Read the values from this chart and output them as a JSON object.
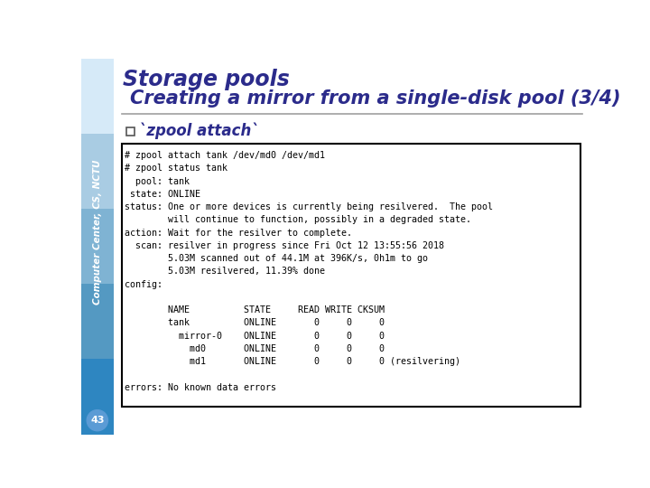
{
  "title_line1": "Storage pools",
  "title_line2": "  Creating a mirror from a single-disk pool (3/4)",
  "title_color": "#2B2B8B",
  "subtitle": "`zpool attach`",
  "subtitle_color": "#2B2B8B",
  "sidebar_text": "Computer Center, CS, NCTU",
  "page_number": "43",
  "main_bg": "#FFFFFF",
  "code_bg": "#FFFFFF",
  "code_border": "#000000",
  "code_lines": [
    "# zpool attach tank /dev/md0 /dev/md1",
    "# zpool status tank",
    "  pool: tank",
    " state: ONLINE",
    "status: One or more devices is currently being resilvered.  The pool",
    "        will continue to function, possibly in a degraded state.",
    "action: Wait for the resilver to complete.",
    "  scan: resilver in progress since Fri Oct 12 13:55:56 2018",
    "        5.03M scanned out of 44.1M at 396K/s, 0h1m to go",
    "        5.03M resilvered, 11.39% done",
    "config:",
    "",
    "        NAME          STATE     READ WRITE CKSUM",
    "        tank          ONLINE       0     0     0",
    "          mirror-0    ONLINE       0     0     0",
    "            md0       ONLINE       0     0     0",
    "            md1       ONLINE       0     0     0 (resilvering)",
    "",
    "errors: No known data errors"
  ],
  "divider_color": "#A0A0A0",
  "sidebar_colors_top_to_bottom": [
    "#D6EAF8",
    "#A9CCE3",
    "#7FB3D3",
    "#5499C2",
    "#2E86C1"
  ]
}
